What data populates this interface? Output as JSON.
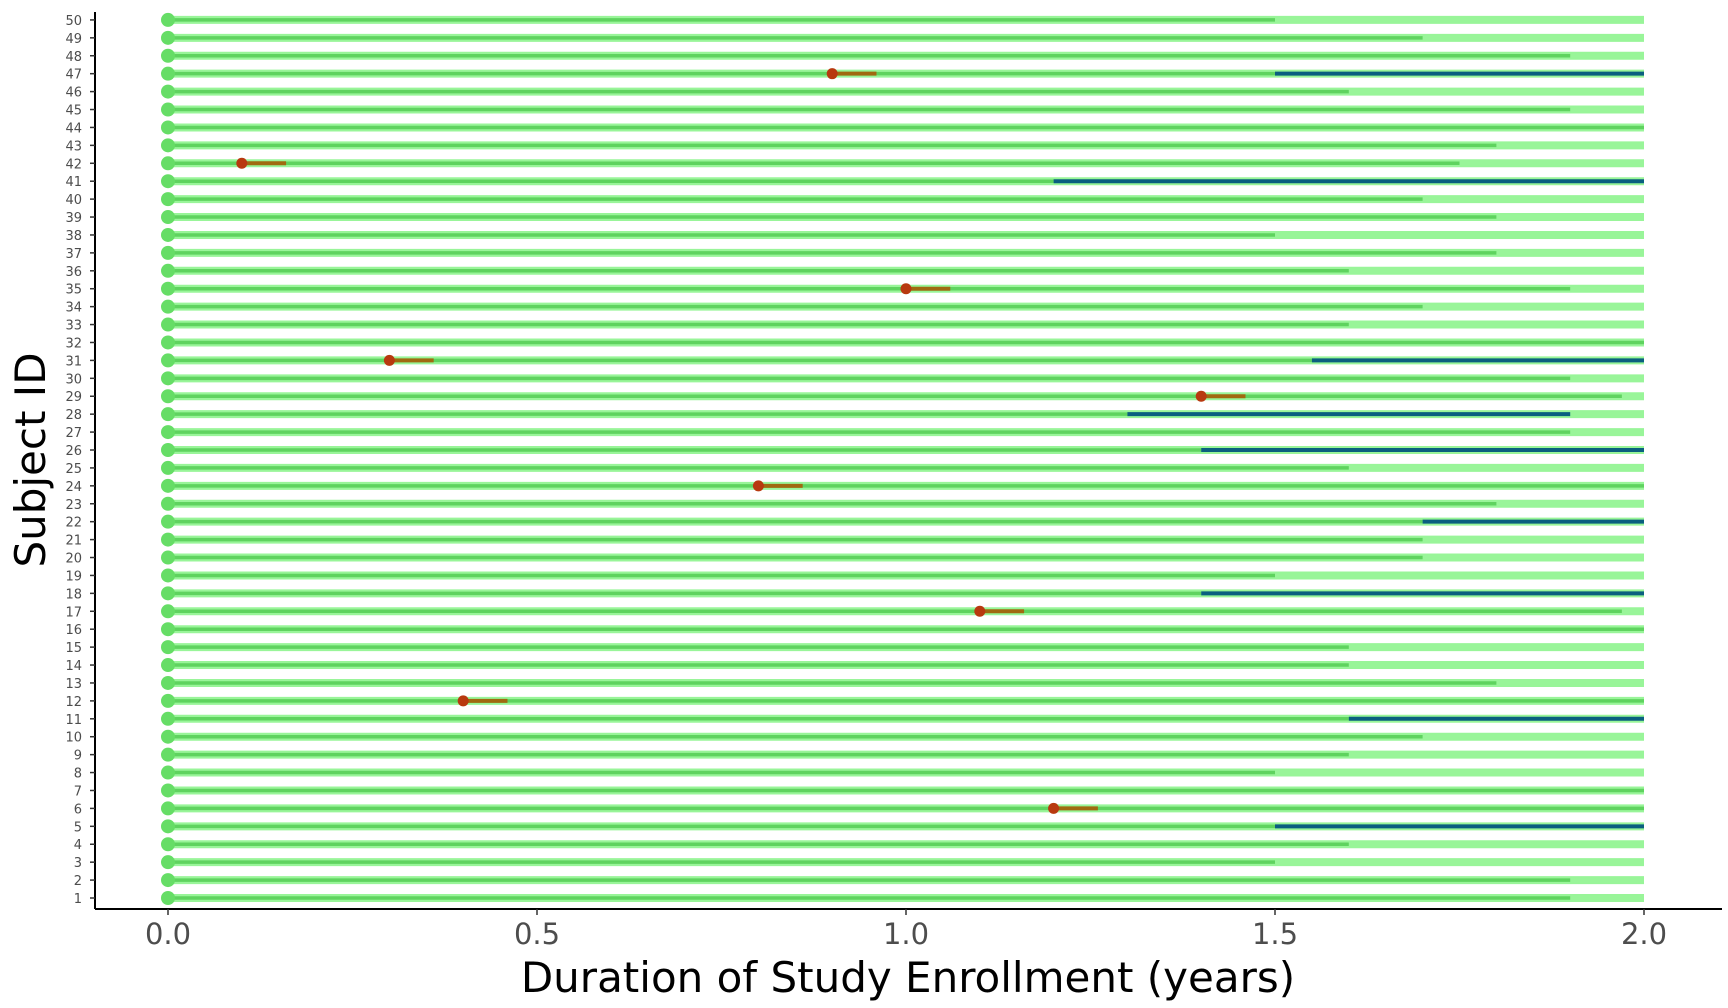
{
  "chart_data": {
    "type": "swimmer",
    "xlabel": "Duration of Study Enrollment (years)",
    "ylabel": "Subject ID",
    "xlim": [
      0,
      2.0
    ],
    "x_ticks": [
      0.0,
      0.5,
      1.0,
      1.5,
      2.0
    ],
    "x_tick_labels": [
      "0.0",
      "0.5",
      "1.0",
      "1.5",
      "2.0"
    ],
    "grid": false,
    "legend": "none",
    "colors": {
      "enrollment_bar": "#99f599",
      "treatment_line": "#5fd35f",
      "start_marker": "#66dd66",
      "response_segment": "#0a5f7f",
      "event_marker": "#b8390f",
      "event_segment": "#a06a10",
      "axis": "#000000",
      "tick_text": "#4d4d4d"
    },
    "subjects": [
      1,
      2,
      3,
      4,
      5,
      6,
      7,
      8,
      9,
      10,
      11,
      12,
      13,
      14,
      15,
      16,
      17,
      18,
      19,
      20,
      21,
      22,
      23,
      24,
      25,
      26,
      27,
      28,
      29,
      30,
      31,
      32,
      33,
      34,
      35,
      36,
      37,
      38,
      39,
      40,
      41,
      42,
      43,
      44,
      45,
      46,
      47,
      48,
      49,
      50
    ],
    "enrollment_years": [
      2.0,
      2.0,
      2.0,
      2.0,
      2.0,
      2.0,
      2.0,
      2.0,
      2.0,
      2.0,
      2.0,
      2.0,
      2.0,
      2.0,
      2.0,
      2.0,
      2.0,
      2.0,
      2.0,
      2.0,
      2.0,
      2.0,
      2.0,
      2.0,
      2.0,
      2.0,
      2.0,
      2.0,
      2.0,
      2.0,
      2.0,
      2.0,
      2.0,
      2.0,
      2.0,
      2.0,
      2.0,
      2.0,
      2.0,
      2.0,
      2.0,
      2.0,
      2.0,
      2.0,
      2.0,
      2.0,
      2.0,
      2.0,
      2.0,
      2.0
    ],
    "treatment_years": [
      1.9,
      1.9,
      1.5,
      1.6,
      1.5,
      2.0,
      2.0,
      1.5,
      1.6,
      1.7,
      1.6,
      2.0,
      1.8,
      1.6,
      1.6,
      2.0,
      1.97,
      1.4,
      1.5,
      1.7,
      1.7,
      1.7,
      1.8,
      2.0,
      1.6,
      1.4,
      1.9,
      1.3,
      1.97,
      1.9,
      1.55,
      2.0,
      1.6,
      1.7,
      1.9,
      1.6,
      1.8,
      1.5,
      1.8,
      1.7,
      1.2,
      1.75,
      1.8,
      2.0,
      1.9,
      1.6,
      1.5,
      1.9,
      1.7,
      1.5
    ],
    "response_segments": [
      {
        "subject": 5,
        "start": 1.5,
        "end": 2.0
      },
      {
        "subject": 11,
        "start": 1.6,
        "end": 2.0
      },
      {
        "subject": 18,
        "start": 1.4,
        "end": 2.0
      },
      {
        "subject": 22,
        "start": 1.7,
        "end": 2.0
      },
      {
        "subject": 26,
        "start": 1.4,
        "end": 2.0
      },
      {
        "subject": 28,
        "start": 1.3,
        "end": 1.9
      },
      {
        "subject": 31,
        "start": 1.55,
        "end": 2.0
      },
      {
        "subject": 41,
        "start": 1.2,
        "end": 2.0
      },
      {
        "subject": 47,
        "start": 1.5,
        "end": 2.0
      }
    ],
    "events": [
      {
        "subject": 6,
        "time": 1.2,
        "end": 1.26
      },
      {
        "subject": 12,
        "time": 0.4,
        "end": 0.46
      },
      {
        "subject": 17,
        "time": 1.1,
        "end": 1.16
      },
      {
        "subject": 24,
        "time": 0.8,
        "end": 0.86
      },
      {
        "subject": 29,
        "time": 1.4,
        "end": 1.46
      },
      {
        "subject": 31,
        "time": 0.3,
        "end": 0.36
      },
      {
        "subject": 35,
        "time": 1.0,
        "end": 1.06
      },
      {
        "subject": 42,
        "time": 0.1,
        "end": 0.16
      },
      {
        "subject": 47,
        "time": 0.9,
        "end": 0.96
      }
    ]
  }
}
